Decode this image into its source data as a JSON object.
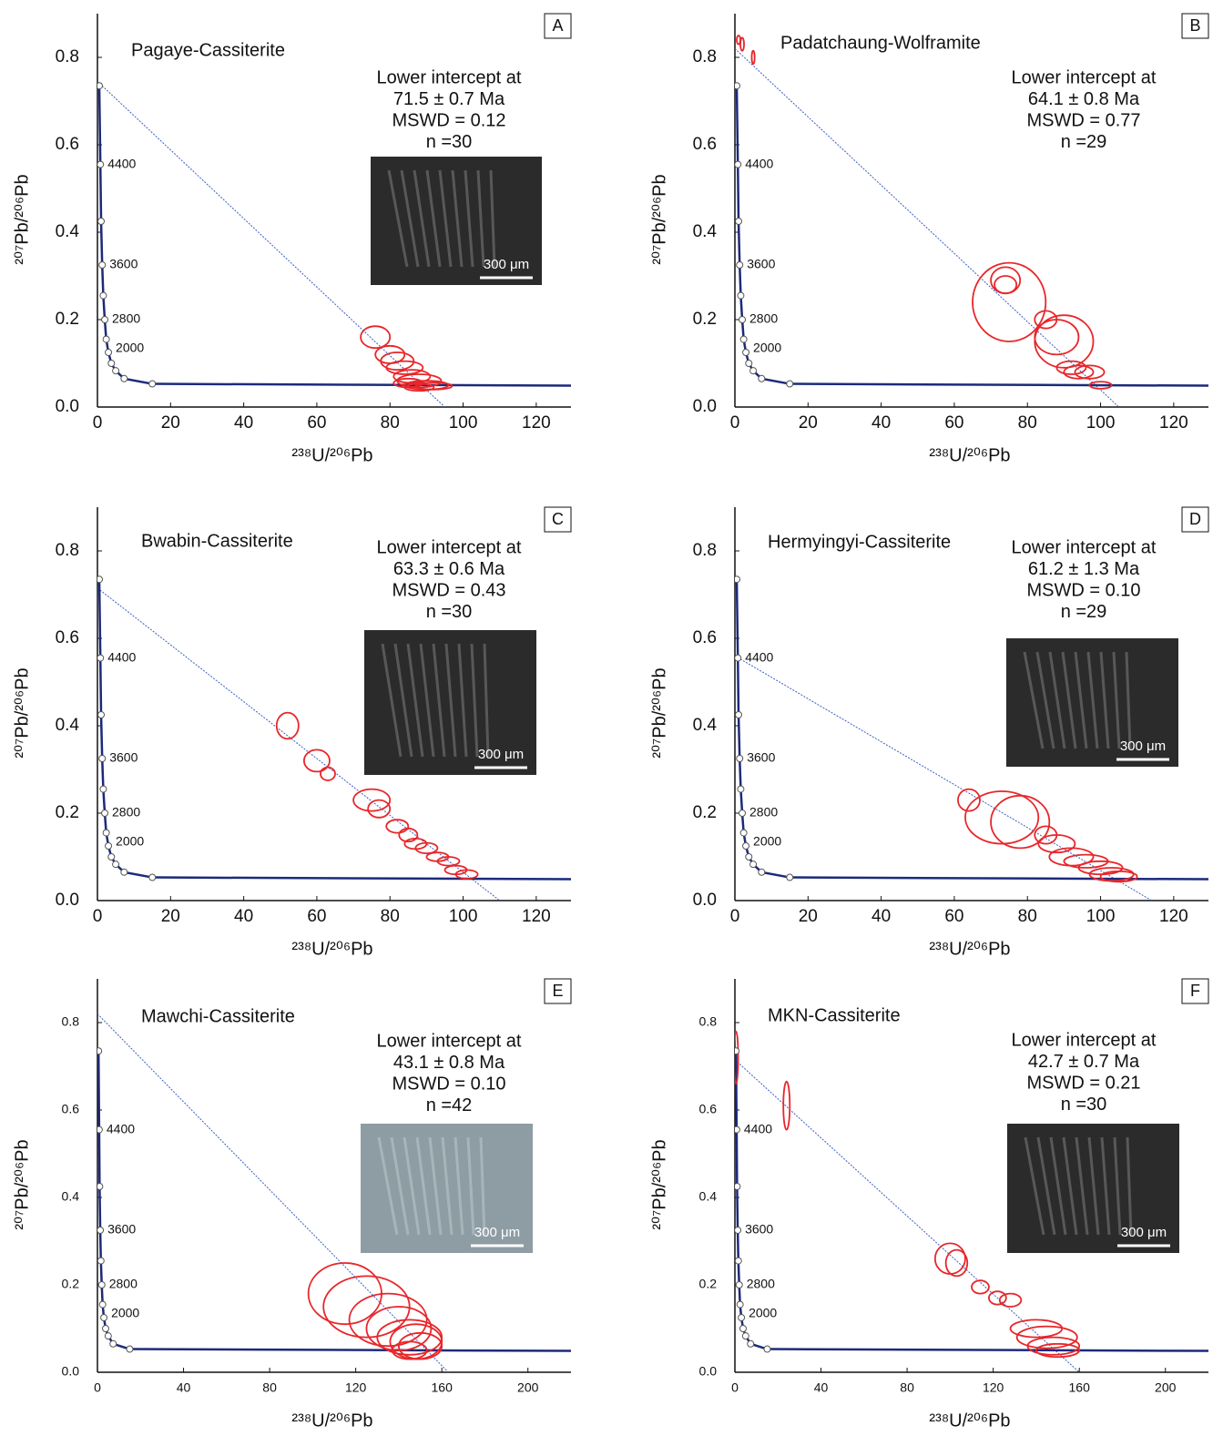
{
  "concordia": {
    "x": [
      0.5,
      0.8,
      1,
      1.3,
      1.6,
      2,
      2.4,
      3,
      3.8,
      5,
      7.3,
      15
    ],
    "y": [
      0.735,
      0.555,
      0.425,
      0.325,
      0.255,
      0.2,
      0.155,
      0.125,
      0.1,
      0.083,
      0.065,
      0.053
    ],
    "ages": [
      null,
      4400,
      null,
      3600,
      null,
      2800,
      null,
      2000,
      null,
      null,
      null,
      null
    ]
  },
  "chart_data": [
    {
      "type": "tera-wasserburg",
      "panel": "A",
      "title": "Pagaye-Cassiterite",
      "annotation": [
        "Lower intercept at",
        "71.5 ± 0.7 Ma",
        "MSWD = 0.12",
        "n =30"
      ],
      "scale_label": "300 μm",
      "x_label": "²³⁸U/²⁰⁶Pb",
      "y_label": "²⁰⁷Pb/²⁰⁶Pb",
      "color": "#e8262a",
      "xlim": [
        0,
        129.5
      ],
      "ylim": [
        0,
        0.9
      ],
      "xticks": [
        0,
        20,
        40,
        60,
        80,
        100,
        120
      ],
      "yticks": [
        {
          "value": 0,
          "label": "0.0"
        },
        0.2,
        0.4,
        0.6,
        0.8
      ],
      "discordia": {
        "x": [
          0,
          95
        ],
        "y": [
          0.745,
          0
        ]
      },
      "ellipses": {
        "x": [
          76,
          80,
          82,
          84,
          86,
          88,
          85,
          90,
          92,
          88
        ],
        "y": [
          0.16,
          0.12,
          0.105,
          0.09,
          0.07,
          0.06,
          0.055,
          0.05,
          0.048,
          0.045
        ],
        "x_err": [
          4,
          4,
          4.5,
          5,
          5,
          6,
          4,
          6,
          5,
          4
        ],
        "y_err": [
          0.025,
          0.02,
          0.02,
          0.015,
          0.015,
          0.015,
          0.01,
          0.01,
          0.008,
          0.008
        ]
      }
    },
    {
      "type": "tera-wasserburg",
      "panel": "B",
      "title": "Padatchaung-Wolframite",
      "annotation": [
        "Lower intercept at",
        "64.1 ± 0.8 Ma",
        "MSWD = 0.77",
        "n =29"
      ],
      "x_label": "²³⁸U/²⁰⁶Pb",
      "y_label": "²⁰⁷Pb/²⁰⁶Pb",
      "color": "#e8262a",
      "xlim": [
        0,
        129.5
      ],
      "ylim": [
        0,
        0.9
      ],
      "xticks": [
        0,
        20,
        40,
        60,
        80,
        100,
        120
      ],
      "yticks": [
        {
          "value": 0,
          "label": "0.0"
        },
        0.2,
        0.4,
        0.6,
        0.8
      ],
      "discordia": {
        "x": [
          0,
          105
        ],
        "y": [
          0.82,
          0
        ]
      },
      "ellipses": {
        "x": [
          1,
          2,
          5,
          75,
          74,
          74,
          85,
          88,
          90,
          92,
          94,
          97,
          100
        ],
        "y": [
          0.84,
          0.83,
          0.8,
          0.24,
          0.29,
          0.28,
          0.2,
          0.16,
          0.15,
          0.09,
          0.08,
          0.08,
          0.05
        ],
        "x_err": [
          0.5,
          0.5,
          0.4,
          10,
          4,
          3,
          3,
          6,
          8,
          4,
          4,
          4,
          3
        ],
        "y_err": [
          0.01,
          0.015,
          0.015,
          0.09,
          0.03,
          0.02,
          0.02,
          0.04,
          0.06,
          0.015,
          0.015,
          0.015,
          0.008
        ]
      }
    },
    {
      "type": "tera-wasserburg",
      "panel": "C",
      "title": "Bwabin-Cassiterite",
      "annotation": [
        "Lower intercept at",
        "63.3 ± 0.6 Ma",
        "MSWD = 0.43",
        "n =30"
      ],
      "scale_label": "300 μm",
      "x_label": "²³⁸U/²⁰⁶Pb",
      "y_label": "²⁰⁷Pb/²⁰⁶Pb",
      "color": "#e8262a",
      "xlim": [
        0,
        129.5
      ],
      "ylim": [
        0,
        0.9
      ],
      "xticks": [
        0,
        20,
        40,
        60,
        80,
        100,
        120
      ],
      "yticks": [
        {
          "value": 0,
          "label": "0.0"
        },
        0.2,
        0.4,
        0.6,
        0.8
      ],
      "discordia": {
        "x": [
          0,
          110
        ],
        "y": [
          0.715,
          0
        ]
      },
      "ellipses": {
        "x": [
          52,
          60,
          63,
          75,
          77,
          82,
          85,
          87,
          90,
          93,
          96,
          98,
          101
        ],
        "y": [
          0.4,
          0.32,
          0.29,
          0.23,
          0.21,
          0.17,
          0.15,
          0.13,
          0.12,
          0.1,
          0.09,
          0.07,
          0.06
        ],
        "x_err": [
          3,
          3.5,
          2,
          5,
          3,
          3,
          2.5,
          3,
          3,
          3,
          3,
          3,
          3
        ],
        "y_err": [
          0.03,
          0.025,
          0.015,
          0.025,
          0.02,
          0.015,
          0.015,
          0.012,
          0.012,
          0.01,
          0.01,
          0.01,
          0.01
        ]
      }
    },
    {
      "type": "tera-wasserburg",
      "panel": "D",
      "title": "Hermyingyi-Cassiterite",
      "annotation": [
        "Lower intercept at",
        "61.2 ± 1.3 Ma",
        "MSWD = 0.10",
        "n =29"
      ],
      "scale_label": "300 μm",
      "x_label": "²³⁸U/²⁰⁶Pb",
      "y_label": "²⁰⁷Pb/²⁰⁶Pb",
      "color": "#e8262a",
      "xlim": [
        0,
        129.5
      ],
      "ylim": [
        0,
        0.9
      ],
      "xticks": [
        0,
        20,
        40,
        60,
        80,
        100,
        120
      ],
      "yticks": [
        {
          "value": 0,
          "label": "0.0"
        },
        0.2,
        0.4,
        0.6,
        0.8
      ],
      "discordia": {
        "x": [
          0,
          114
        ],
        "y": [
          0.56,
          0
        ]
      },
      "ellipses": {
        "x": [
          64,
          73,
          78,
          85,
          88,
          92,
          96,
          100,
          103,
          105
        ],
        "y": [
          0.23,
          0.19,
          0.18,
          0.15,
          0.13,
          0.1,
          0.09,
          0.075,
          0.06,
          0.055
        ],
        "x_err": [
          3,
          10,
          8,
          3,
          5,
          6,
          6,
          6,
          6,
          5
        ],
        "y_err": [
          0.025,
          0.06,
          0.06,
          0.02,
          0.02,
          0.02,
          0.015,
          0.015,
          0.015,
          0.012
        ]
      }
    },
    {
      "type": "tera-wasserburg",
      "panel": "E",
      "title": "Mawchi-Cassiterite",
      "annotation": [
        "Lower intercept at",
        "43.1 ± 0.8 Ma",
        "MSWD = 0.10",
        "n =42"
      ],
      "scale_label": "300 μm",
      "x_label": "²³⁸U/²⁰⁶Pb",
      "y_label": "²⁰⁷Pb/²⁰⁶Pb",
      "color": "#e8262a",
      "xlim": [
        0,
        220
      ],
      "ylim": [
        0,
        0.9
      ],
      "xticks": [
        0,
        40,
        80,
        120,
        160,
        200
      ],
      "yticks": [
        {
          "value": 0,
          "label": "0.0"
        },
        0.2,
        0.4,
        0.6,
        0.8
      ],
      "discordia": {
        "x": [
          0,
          163
        ],
        "y": [
          0.82,
          0
        ]
      },
      "ellipses": {
        "x": [
          115,
          125,
          135,
          140,
          145,
          148,
          150,
          145
        ],
        "y": [
          0.18,
          0.15,
          0.12,
          0.1,
          0.08,
          0.07,
          0.06,
          0.05
        ],
        "x_err": [
          17,
          20,
          18,
          15,
          15,
          12,
          10,
          8
        ],
        "y_err": [
          0.07,
          0.07,
          0.06,
          0.05,
          0.04,
          0.04,
          0.03,
          0.02
        ]
      }
    },
    {
      "type": "tera-wasserburg",
      "panel": "F",
      "title": "MKN-Cassiterite",
      "annotation": [
        "Lower intercept at",
        "42.7 ± 0.7 Ma",
        "MSWD = 0.21",
        "n =30"
      ],
      "scale_label": "300 μm",
      "x_label": "²³⁸U/²⁰⁶Pb",
      "y_label": "²⁰⁷Pb/²⁰⁶Pb",
      "color": "#e8262a",
      "xlim": [
        0,
        220
      ],
      "ylim": [
        0,
        0.9
      ],
      "xticks": [
        0,
        40,
        80,
        120,
        160,
        200
      ],
      "yticks": [
        {
          "value": 0,
          "label": "0.0"
        },
        0.2,
        0.4,
        0.6,
        0.8
      ],
      "discordia": {
        "x": [
          0,
          160
        ],
        "y": [
          0.715,
          0
        ]
      },
      "ellipses": {
        "x": [
          0.5,
          24,
          100,
          103,
          114,
          122,
          128,
          140,
          145,
          148,
          150
        ],
        "y": [
          0.72,
          0.61,
          0.26,
          0.25,
          0.195,
          0.17,
          0.165,
          0.1,
          0.08,
          0.06,
          0.05
        ],
        "x_err": [
          1,
          1.5,
          7,
          5,
          4,
          4,
          5,
          12,
          14,
          12,
          10
        ],
        "y_err": [
          0.06,
          0.055,
          0.035,
          0.03,
          0.015,
          0.015,
          0.015,
          0.02,
          0.025,
          0.02,
          0.015
        ]
      }
    }
  ]
}
